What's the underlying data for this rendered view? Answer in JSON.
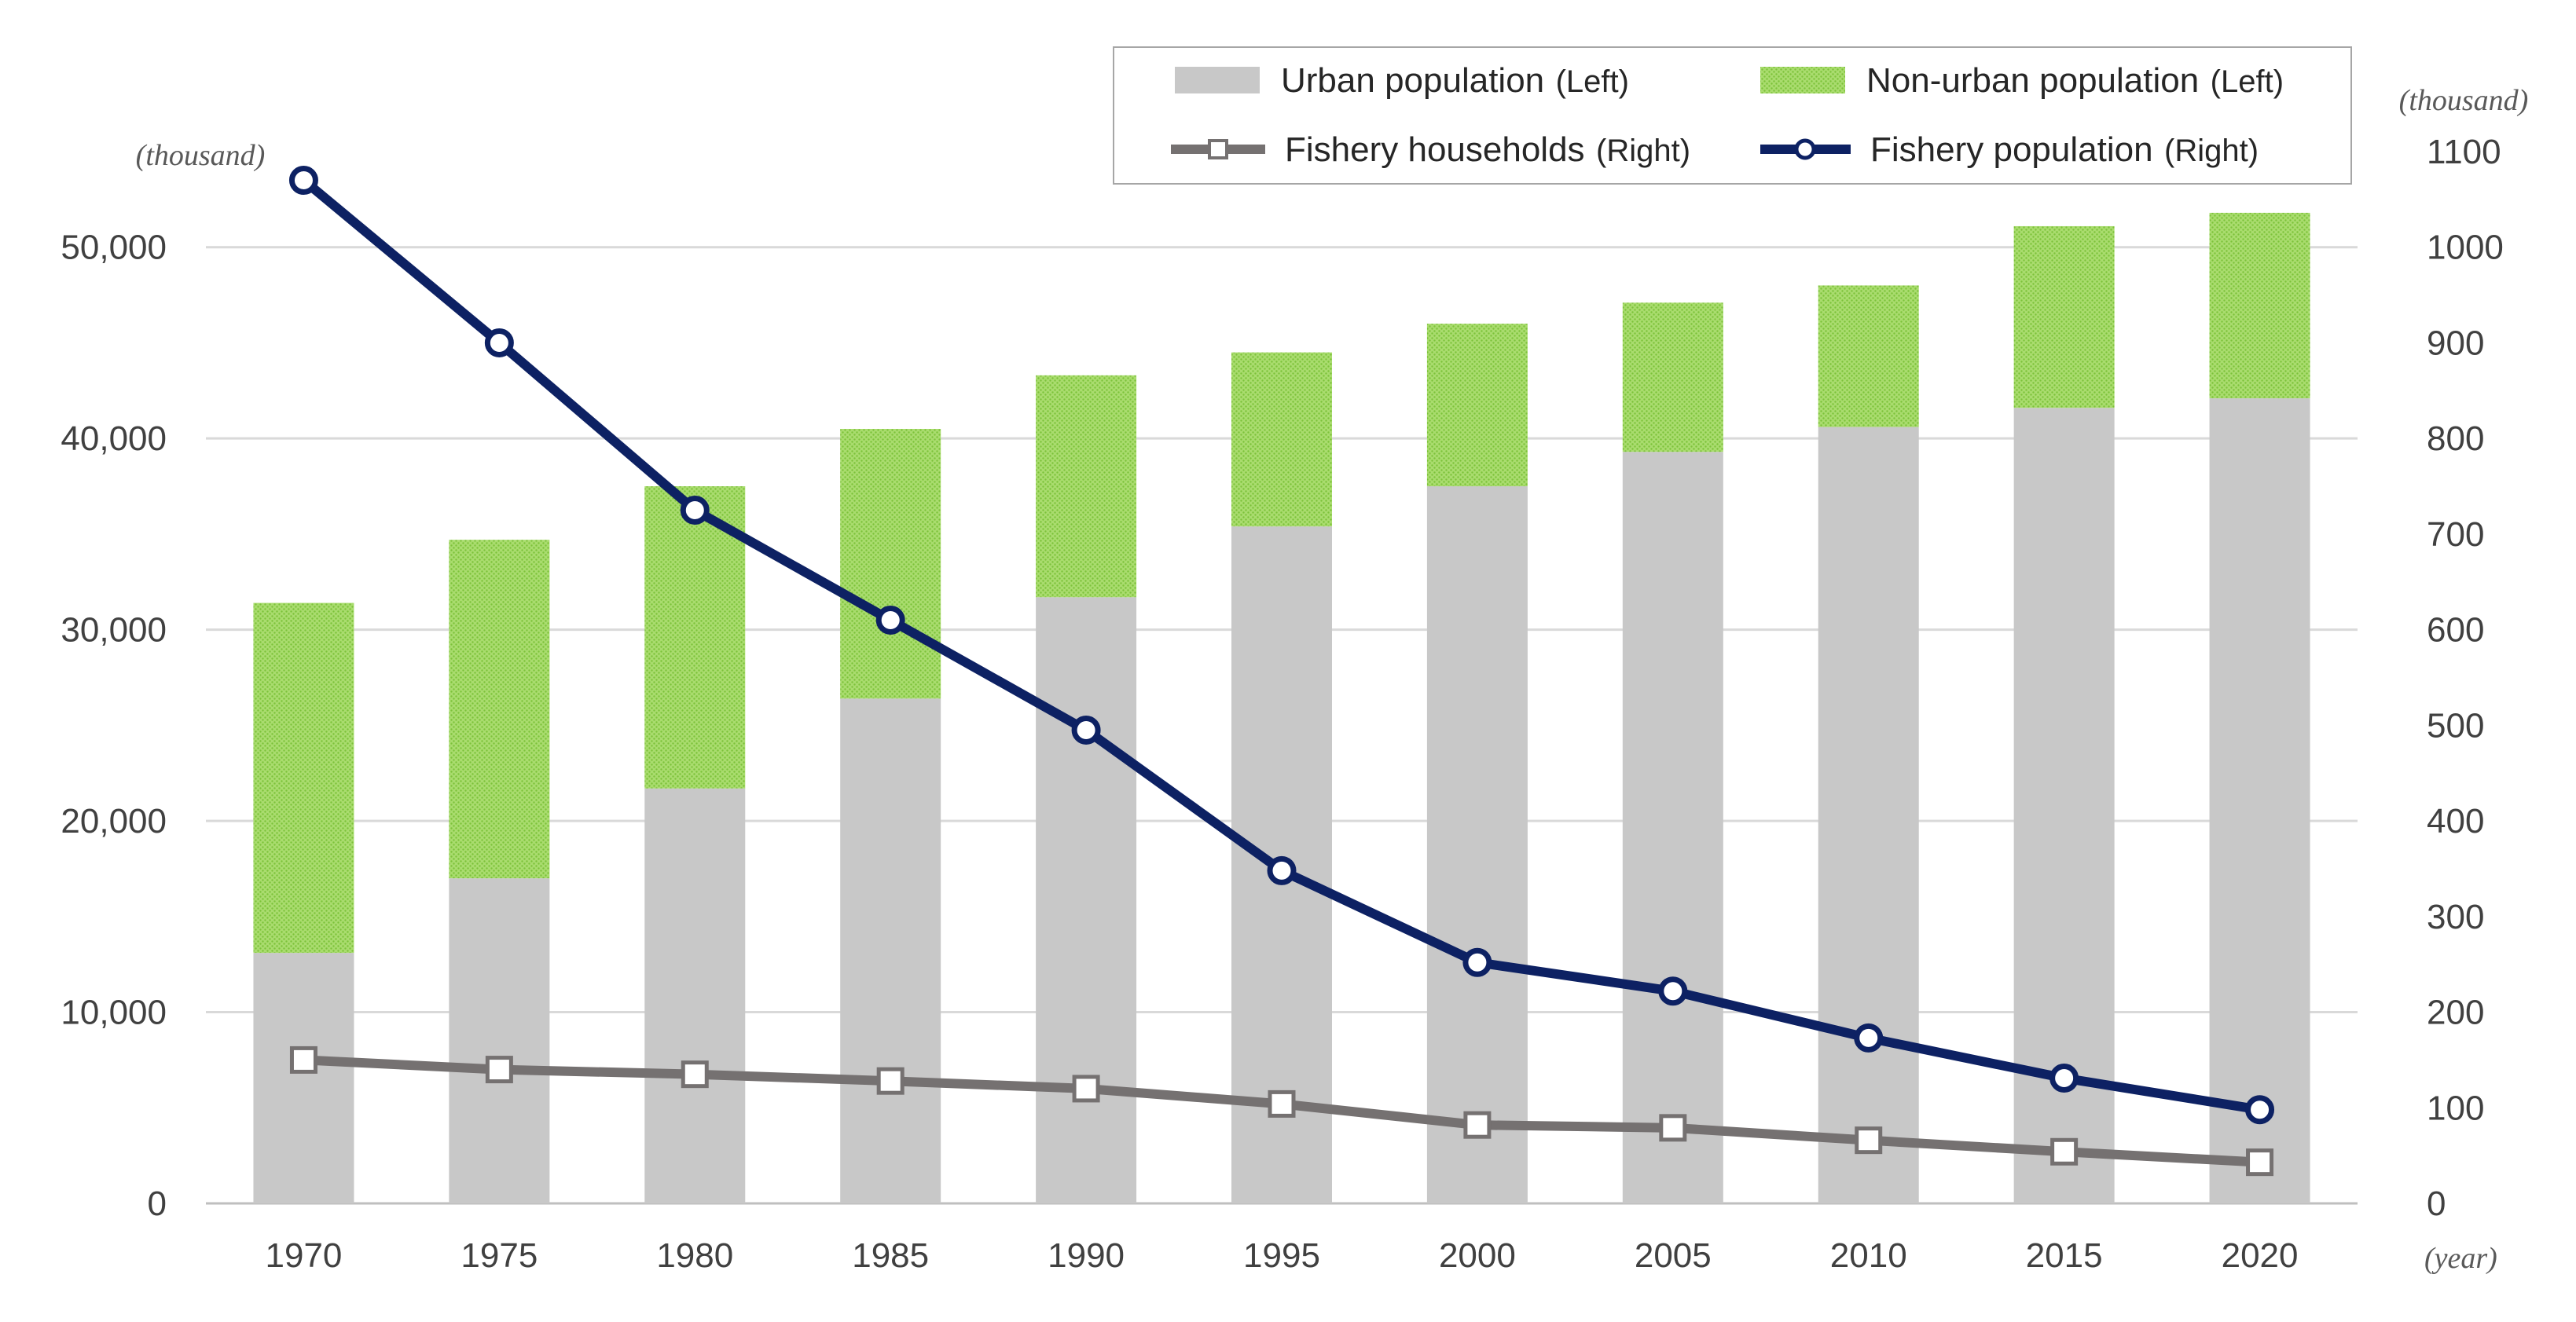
{
  "chart_data": {
    "type": "bar+line",
    "categories": [
      "1970",
      "1975",
      "1980",
      "1985",
      "1990",
      "1995",
      "2000",
      "2005",
      "2010",
      "2015",
      "2020"
    ],
    "series": [
      {
        "name": "Urban population",
        "axis_tag": "(Left)",
        "axis": "left",
        "kind": "stacked-bar",
        "color": "#c8c8c8",
        "values": [
          13100,
          17000,
          21700,
          26400,
          31700,
          35400,
          37500,
          39300,
          40600,
          41600,
          42100
        ]
      },
      {
        "name": "Non-urban population",
        "axis_tag": "(Left)",
        "axis": "left",
        "kind": "stacked-bar",
        "color": "#92d050",
        "values": [
          18300,
          17700,
          15800,
          14100,
          11600,
          9100,
          8500,
          7800,
          7400,
          9500,
          9700
        ]
      },
      {
        "name": "Fishery households",
        "axis_tag": "(Right)",
        "axis": "right",
        "kind": "line",
        "color": "#757171",
        "values": [
          150,
          140,
          135,
          128,
          120,
          104,
          82,
          79,
          66,
          54,
          43
        ]
      },
      {
        "name": "Fishery population",
        "axis_tag": "(Right)",
        "axis": "right",
        "kind": "line",
        "color": "#0d2163",
        "values": [
          1070,
          900,
          725,
          610,
          495,
          348,
          252,
          222,
          173,
          131,
          98
        ]
      }
    ],
    "left_axis": {
      "unit_label": "(thousand)",
      "ylim": [
        0,
        55000
      ],
      "ticks": [
        0,
        10000,
        20000,
        30000,
        40000,
        50000
      ],
      "tick_labels": [
        "0",
        "10,000",
        "20,000",
        "30,000",
        "40,000",
        "50,000"
      ]
    },
    "right_axis": {
      "unit_label": "(thousand)",
      "ylim": [
        0,
        1100
      ],
      "ticks": [
        0,
        100,
        200,
        300,
        400,
        500,
        600,
        700,
        800,
        900,
        1000,
        1100
      ],
      "tick_labels": [
        "0",
        "100",
        "200",
        "300",
        "400",
        "500",
        "600",
        "700",
        "800",
        "900",
        "1000",
        "1100"
      ]
    },
    "x_axis": {
      "unit_label": "(year)"
    },
    "grid": true,
    "legend_position": "top-right"
  }
}
